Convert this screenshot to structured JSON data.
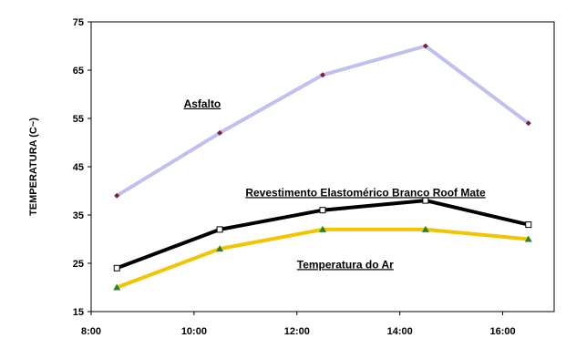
{
  "chart_data": {
    "type": "line",
    "title": "",
    "xlabel": "",
    "ylabel": "TEMPERATURA    (C~)",
    "x_ticks": [
      "8:00",
      "10:00",
      "12:00",
      "14:00",
      "16:00"
    ],
    "xlim": [
      8,
      17.0
    ],
    "y_ticks": [
      "15",
      "25",
      "35",
      "45",
      "55",
      "65",
      "75"
    ],
    "ylim": [
      15,
      75
    ],
    "grid": false,
    "x": [
      8.5,
      10.5,
      12.5,
      14.5,
      16.5
    ],
    "series": [
      {
        "name": "Asfalto",
        "values": [
          39,
          52,
          64,
          70,
          54
        ],
        "color": "#c0c0f0",
        "marker": "diamond",
        "marker_color": "#7a1f3d"
      },
      {
        "name": "Revestimento Elastomérico Branco Roof Mate",
        "values": [
          24,
          32,
          36,
          38,
          33
        ],
        "color": "#000000",
        "marker": "square",
        "marker_color": "#ffffff"
      },
      {
        "name": "Temperatura do Ar",
        "values": [
          20,
          28,
          32,
          32,
          30
        ],
        "color": "#f2c500",
        "marker": "triangle",
        "marker_color": "#2e7d32"
      }
    ],
    "annotations": [
      {
        "text": "Asfalto",
        "x": 9.8,
        "y": 57.3
      },
      {
        "text": "Revestimento Elastomérico Branco Roof Mate",
        "x": 11.0,
        "y": 38.9
      },
      {
        "text": "Temperatura do Ar",
        "x": 12.0,
        "y": 24.0
      }
    ]
  }
}
